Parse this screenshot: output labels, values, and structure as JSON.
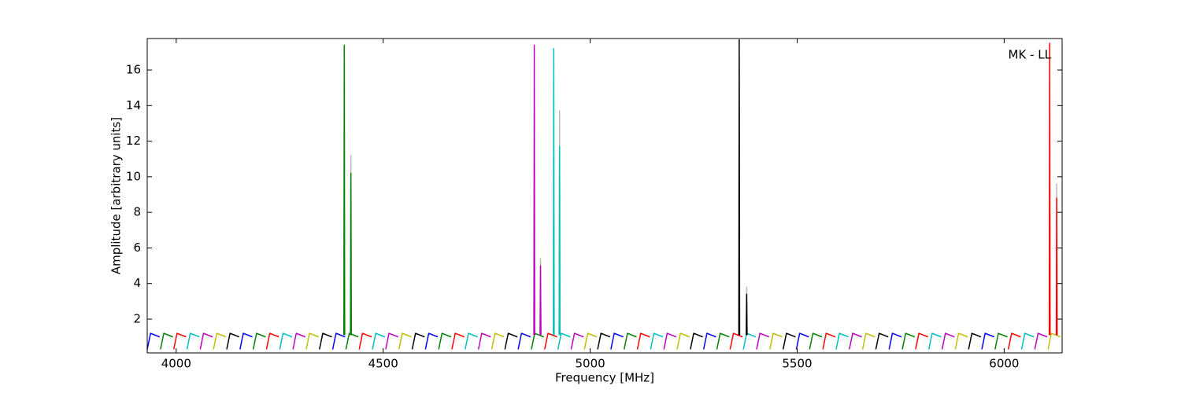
{
  "chart_data": {
    "type": "line",
    "xlabel": "Frequency [MHz]",
    "ylabel": "Amplitude [arbitrary units]",
    "annotation": "MK - LL",
    "xlim": [
      3930,
      6140
    ],
    "ylim": [
      0.1,
      17.77
    ],
    "xticks": [
      4000,
      4500,
      5000,
      5500,
      6000
    ],
    "yticks": [
      2,
      4,
      6,
      8,
      10,
      12,
      14,
      16
    ],
    "series": [
      {
        "color": "#0000ff",
        "x": [
          3930,
          3938,
          3960,
          null,
          4154,
          4162,
          4184,
          null,
          4378,
          4386,
          4408,
          null,
          4602,
          4610,
          4632,
          null,
          4826,
          4834,
          4856,
          null,
          5050,
          5058,
          5080,
          null,
          5274,
          5282,
          5304,
          null,
          5498,
          5506,
          5528,
          null,
          5722,
          5730,
          5752,
          null,
          5946,
          5954,
          5976
        ],
        "values": [
          0.3,
          1.2,
          1.0,
          null,
          0.3,
          1.2,
          1.0,
          null,
          0.3,
          1.2,
          1.0,
          null,
          0.3,
          1.2,
          1.0,
          null,
          0.3,
          1.2,
          1.0,
          null,
          0.3,
          1.2,
          1.0,
          null,
          0.3,
          1.2,
          1.0,
          null,
          0.3,
          1.2,
          1.0,
          null,
          0.3,
          1.2,
          1.0,
          null,
          0.3,
          1.2,
          1.0
        ]
      },
      {
        "color": "#008000",
        "x": [
          3962,
          3970,
          3992,
          null,
          4186,
          4194,
          4216,
          null,
          4410,
          4418,
          4440,
          null,
          4634,
          4642,
          4664,
          null,
          4858,
          4866,
          4888,
          null,
          5082,
          5090,
          5112,
          null,
          5306,
          5314,
          5336,
          null,
          5530,
          5538,
          5560,
          null,
          5754,
          5762,
          5784,
          null,
          5978,
          5986,
          6008
        ],
        "values": [
          0.3,
          1.2,
          1.0,
          null,
          0.3,
          1.2,
          1.0,
          null,
          0.3,
          1.2,
          1.0,
          null,
          0.3,
          1.2,
          1.0,
          null,
          0.3,
          1.2,
          1.0,
          null,
          0.3,
          1.2,
          1.0,
          null,
          0.3,
          1.2,
          1.0,
          null,
          0.3,
          1.2,
          1.0,
          null,
          0.3,
          1.2,
          1.0,
          null,
          0.3,
          1.2,
          1.0
        ]
      },
      {
        "color": "#ff0000",
        "x": [
          3994,
          4002,
          4024,
          null,
          4218,
          4226,
          4248,
          null,
          4442,
          4450,
          4472,
          null,
          4666,
          4674,
          4696,
          null,
          4890,
          4898,
          4920,
          null,
          5114,
          5122,
          5144,
          null,
          5338,
          5346,
          5368,
          null,
          5562,
          5570,
          5592,
          null,
          5786,
          5794,
          5816,
          null,
          6010,
          6018,
          6040
        ],
        "values": [
          0.3,
          1.2,
          1.0,
          null,
          0.3,
          1.2,
          1.0,
          null,
          0.3,
          1.2,
          1.0,
          null,
          0.3,
          1.2,
          1.0,
          null,
          0.3,
          1.2,
          1.0,
          null,
          0.3,
          1.2,
          1.0,
          null,
          0.3,
          1.2,
          1.0,
          null,
          0.3,
          1.2,
          1.0,
          null,
          0.3,
          1.2,
          1.0,
          null,
          0.3,
          1.2,
          1.0
        ]
      },
      {
        "color": "#00bfbf",
        "x": [
          4026,
          4034,
          4056,
          null,
          4250,
          4258,
          4280,
          null,
          4474,
          4482,
          4504,
          null,
          4698,
          4706,
          4728,
          null,
          4922,
          4930,
          4952,
          null,
          5146,
          5154,
          5176,
          null,
          5370,
          5378,
          5400,
          null,
          5594,
          5602,
          5624,
          null,
          5818,
          5826,
          5848,
          null,
          6042,
          6050,
          6072
        ],
        "values": [
          0.3,
          1.2,
          1.0,
          null,
          0.3,
          1.2,
          1.0,
          null,
          0.3,
          1.2,
          1.0,
          null,
          0.3,
          1.2,
          1.0,
          null,
          0.3,
          1.2,
          1.0,
          null,
          0.3,
          1.2,
          1.0,
          null,
          0.3,
          1.2,
          1.0,
          null,
          0.3,
          1.2,
          1.0,
          null,
          0.3,
          1.2,
          1.0,
          null,
          0.3,
          1.2,
          1.0
        ]
      },
      {
        "color": "#bf00bf",
        "x": [
          4058,
          4066,
          4088,
          null,
          4282,
          4290,
          4312,
          null,
          4506,
          4514,
          4536,
          null,
          4730,
          4738,
          4760,
          null,
          4954,
          4962,
          4984,
          null,
          5178,
          5186,
          5208,
          null,
          5402,
          5410,
          5432,
          null,
          5626,
          5634,
          5656,
          null,
          5850,
          5858,
          5880,
          null,
          6074,
          6082,
          6104
        ],
        "values": [
          0.3,
          1.2,
          1.0,
          null,
          0.3,
          1.2,
          1.0,
          null,
          0.3,
          1.2,
          1.0,
          null,
          0.3,
          1.2,
          1.0,
          null,
          0.3,
          1.2,
          1.0,
          null,
          0.3,
          1.2,
          1.0,
          null,
          0.3,
          1.2,
          1.0,
          null,
          0.3,
          1.2,
          1.0,
          null,
          0.3,
          1.2,
          1.0,
          null,
          0.3,
          1.2,
          1.0
        ]
      },
      {
        "color": "#bfbf00",
        "x": [
          4090,
          4098,
          4120,
          null,
          4314,
          4322,
          4344,
          null,
          4538,
          4546,
          4568,
          null,
          4762,
          4770,
          4792,
          null,
          4986,
          4994,
          5016,
          null,
          5210,
          5218,
          5240,
          null,
          5434,
          5442,
          5464,
          null,
          5658,
          5666,
          5688,
          null,
          5882,
          5890,
          5912,
          null,
          6106,
          6114,
          6136
        ],
        "values": [
          0.3,
          1.2,
          1.0,
          null,
          0.3,
          1.2,
          1.0,
          null,
          0.3,
          1.2,
          1.0,
          null,
          0.3,
          1.2,
          1.0,
          null,
          0.3,
          1.2,
          1.0,
          null,
          0.3,
          1.2,
          1.0,
          null,
          0.3,
          1.2,
          1.0,
          null,
          0.3,
          1.2,
          1.0,
          null,
          0.3,
          1.2,
          1.0,
          null,
          0.3,
          1.2,
          1.0
        ]
      },
      {
        "color": "#000000",
        "x": [
          4122,
          4130,
          4152,
          null,
          4346,
          4354,
          4376,
          null,
          4570,
          4578,
          4600,
          null,
          4794,
          4802,
          4824,
          null,
          5018,
          5026,
          5048,
          null,
          5242,
          5250,
          5272,
          null,
          5466,
          5474,
          5496,
          null,
          5690,
          5698,
          5720,
          null,
          5914,
          5922,
          5944
        ],
        "values": [
          0.3,
          1.2,
          1.0,
          null,
          0.3,
          1.2,
          1.0,
          null,
          0.3,
          1.2,
          1.0,
          null,
          0.3,
          1.2,
          1.0,
          null,
          0.3,
          1.2,
          1.0,
          null,
          0.3,
          1.2,
          1.0,
          null,
          0.3,
          1.2,
          1.0,
          null,
          0.3,
          1.2,
          1.0,
          null,
          0.3,
          1.2,
          1.0
        ]
      },
      {
        "color": "#bbbbbb",
        "x": [
          4421,
          4422,
          4423,
          null,
          4879,
          4880,
          4881,
          null,
          4925,
          4926,
          4927,
          null,
          5377,
          5378,
          5379,
          null,
          6126,
          6127,
          6128
        ],
        "values": [
          1.1,
          11.2,
          1.1,
          null,
          1.1,
          5.4,
          1.1,
          null,
          1.1,
          13.7,
          1.1,
          null,
          1.1,
          3.8,
          1.1,
          null,
          1.1,
          9.6,
          1.1
        ]
      },
      {
        "color": "#008000",
        "x": [
          4405,
          4406,
          4407,
          null,
          4421,
          4422,
          4423
        ],
        "values": [
          1.1,
          17.4,
          1.1,
          null,
          1.1,
          10.2,
          1.1
        ]
      },
      {
        "color": "#bf00bf",
        "x": [
          4864,
          4865,
          4866,
          null,
          4879,
          4880,
          4881
        ],
        "values": [
          1.1,
          17.4,
          1.1,
          null,
          1.1,
          5.0,
          1.1
        ]
      },
      {
        "color": "#00bfbf",
        "x": [
          4911,
          4912,
          4913,
          null,
          4925,
          4926,
          4927
        ],
        "values": [
          1.1,
          17.2,
          1.1,
          null,
          1.1,
          11.7,
          1.1
        ]
      },
      {
        "color": "#000000",
        "x": [
          5359,
          5360,
          5361,
          null,
          5377,
          5378,
          5379
        ],
        "values": [
          1.1,
          17.7,
          1.1,
          null,
          1.1,
          3.4,
          1.1
        ]
      },
      {
        "color": "#ff0000",
        "x": [
          6109,
          6110,
          6111,
          null,
          6126,
          6127,
          6128
        ],
        "values": [
          1.1,
          17.5,
          1.1,
          null,
          1.1,
          8.8,
          1.1
        ]
      }
    ]
  }
}
